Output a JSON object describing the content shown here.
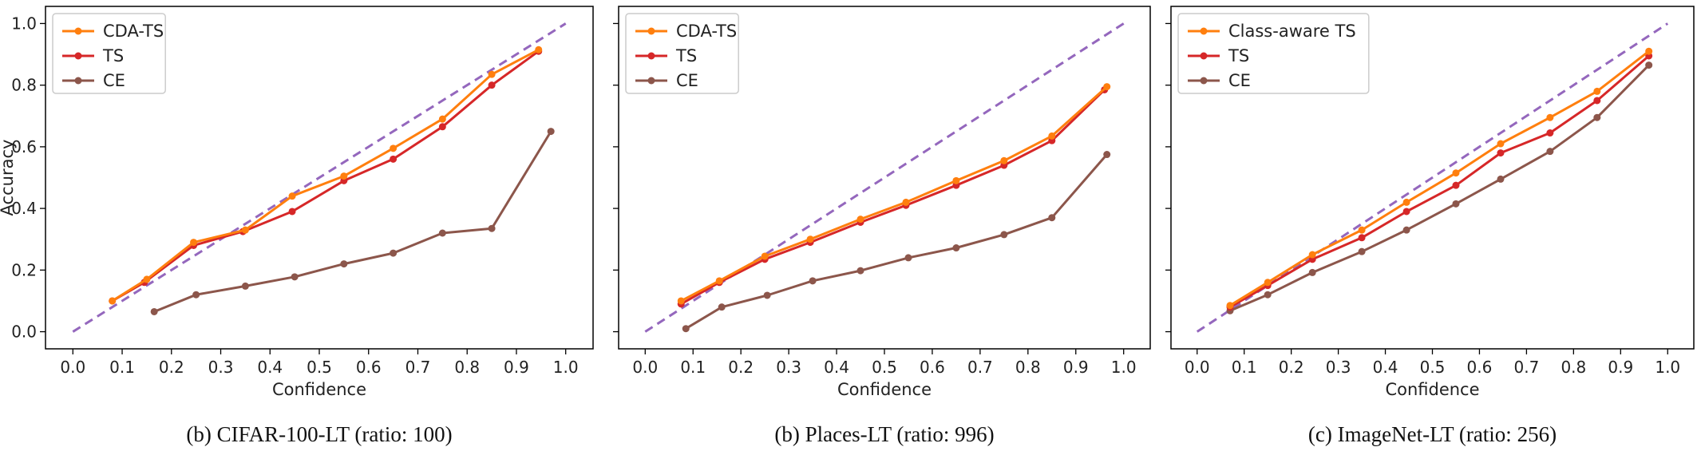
{
  "chart_data": [
    {
      "type": "line",
      "caption": "(b) CIFAR-100-LT (ratio: 100)",
      "xlabel": "Confidence",
      "ylabel": "Accuracy",
      "xlim": [
        0.0,
        1.0
      ],
      "ylim": [
        0.0,
        1.0
      ],
      "xticks": [
        "0.0",
        "0.1",
        "0.2",
        "0.3",
        "0.4",
        "0.5",
        "0.6",
        "0.7",
        "0.8",
        "0.9",
        "1.0"
      ],
      "yticks": [
        "0.0",
        "0.2",
        "0.4",
        "0.6",
        "0.8",
        "1.0"
      ],
      "legend_position": "top-left",
      "grid": false,
      "diagonal": {
        "from": [
          0.0,
          0.0
        ],
        "to": [
          1.0,
          1.0
        ],
        "color": "#9467bd",
        "style": "dashed"
      },
      "series": [
        {
          "name": "CDA-TS",
          "color": "#ff7f0e",
          "x": [
            0.08,
            0.15,
            0.245,
            0.35,
            0.445,
            0.55,
            0.65,
            0.75,
            0.85,
            0.945
          ],
          "y": [
            0.1,
            0.17,
            0.29,
            0.33,
            0.44,
            0.505,
            0.595,
            0.69,
            0.835,
            0.915
          ]
        },
        {
          "name": "TS",
          "color": "#d62728",
          "x": [
            0.08,
            0.145,
            0.245,
            0.345,
            0.445,
            0.55,
            0.65,
            0.75,
            0.85,
            0.945
          ],
          "y": [
            0.1,
            0.16,
            0.28,
            0.325,
            0.39,
            0.49,
            0.56,
            0.665,
            0.8,
            0.91
          ]
        },
        {
          "name": "CE",
          "color": "#8c564b",
          "x": [
            0.165,
            0.25,
            0.35,
            0.45,
            0.55,
            0.65,
            0.75,
            0.85,
            0.97
          ],
          "y": [
            0.065,
            0.12,
            0.148,
            0.178,
            0.22,
            0.255,
            0.32,
            0.335,
            0.65
          ]
        }
      ]
    },
    {
      "type": "line",
      "caption": "(b) Places-LT (ratio: 996)",
      "xlabel": "Confidence",
      "ylabel": "",
      "xlim": [
        0.0,
        1.0
      ],
      "ylim": [
        0.0,
        1.0
      ],
      "xticks": [
        "0.0",
        "0.1",
        "0.2",
        "0.3",
        "0.4",
        "0.5",
        "0.6",
        "0.7",
        "0.8",
        "0.9",
        "1.0"
      ],
      "yticks": [
        "",
        "",
        "",
        "",
        "",
        ""
      ],
      "legend_position": "top-left",
      "grid": false,
      "diagonal": {
        "from": [
          0.0,
          0.0
        ],
        "to": [
          1.0,
          1.0
        ],
        "color": "#9467bd",
        "style": "dashed"
      },
      "series": [
        {
          "name": "CDA-TS",
          "color": "#ff7f0e",
          "x": [
            0.075,
            0.155,
            0.25,
            0.345,
            0.45,
            0.545,
            0.65,
            0.75,
            0.85,
            0.965
          ],
          "y": [
            0.1,
            0.165,
            0.245,
            0.3,
            0.365,
            0.42,
            0.49,
            0.555,
            0.635,
            0.795
          ]
        },
        {
          "name": "TS",
          "color": "#d62728",
          "x": [
            0.075,
            0.155,
            0.25,
            0.345,
            0.45,
            0.545,
            0.65,
            0.75,
            0.85,
            0.96
          ],
          "y": [
            0.09,
            0.16,
            0.235,
            0.29,
            0.355,
            0.41,
            0.475,
            0.54,
            0.62,
            0.785
          ]
        },
        {
          "name": "CE",
          "color": "#8c564b",
          "x": [
            0.085,
            0.16,
            0.255,
            0.35,
            0.45,
            0.55,
            0.65,
            0.75,
            0.85,
            0.965
          ],
          "y": [
            0.01,
            0.08,
            0.118,
            0.165,
            0.198,
            0.24,
            0.272,
            0.315,
            0.37,
            0.575
          ]
        }
      ]
    },
    {
      "type": "line",
      "caption": "(c) ImageNet-LT (ratio: 256)",
      "xlabel": "Confidence",
      "ylabel": "",
      "xlim": [
        0.0,
        1.0
      ],
      "ylim": [
        0.0,
        1.0
      ],
      "xticks": [
        "0.0",
        "0.1",
        "0.2",
        "0.3",
        "0.4",
        "0.5",
        "0.6",
        "0.7",
        "0.8",
        "0.9",
        "1.0"
      ],
      "yticks": [
        "",
        "",
        "",
        "",
        "",
        ""
      ],
      "legend_position": "top-left",
      "grid": false,
      "diagonal": {
        "from": [
          0.0,
          0.0
        ],
        "to": [
          1.0,
          1.0
        ],
        "color": "#9467bd",
        "style": "dashed"
      },
      "series": [
        {
          "name": "Class-aware TS",
          "color": "#ff7f0e",
          "x": [
            0.07,
            0.15,
            0.245,
            0.35,
            0.445,
            0.55,
            0.645,
            0.75,
            0.85,
            0.96
          ],
          "y": [
            0.085,
            0.16,
            0.25,
            0.33,
            0.42,
            0.515,
            0.61,
            0.695,
            0.78,
            0.91
          ]
        },
        {
          "name": "TS",
          "color": "#d62728",
          "x": [
            0.07,
            0.15,
            0.245,
            0.35,
            0.445,
            0.55,
            0.645,
            0.75,
            0.85,
            0.96
          ],
          "y": [
            0.08,
            0.15,
            0.235,
            0.305,
            0.39,
            0.475,
            0.58,
            0.645,
            0.75,
            0.895
          ]
        },
        {
          "name": "CE",
          "color": "#8c564b",
          "x": [
            0.07,
            0.15,
            0.245,
            0.35,
            0.445,
            0.55,
            0.645,
            0.75,
            0.85,
            0.96
          ],
          "y": [
            0.068,
            0.12,
            0.192,
            0.26,
            0.33,
            0.415,
            0.495,
            0.585,
            0.695,
            0.865
          ]
        }
      ]
    }
  ]
}
